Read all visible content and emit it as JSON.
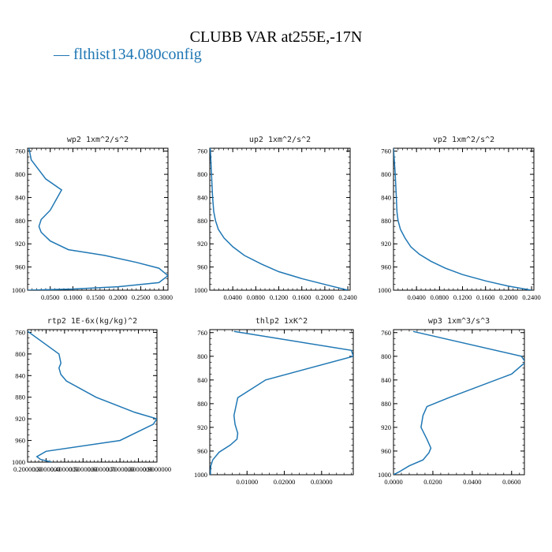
{
  "title": "CLUBB VAR at255E,-17N",
  "legend": "— flthist134.080config",
  "series_color": "#1f77b4",
  "chart_data": [
    {
      "type": "line",
      "title": "wp2   1xm^2/s^2",
      "xlim": [
        0.0,
        0.31
      ],
      "ylim": [
        1000,
        755
      ],
      "y_reversed": true,
      "xticks": [
        "0.0500",
        "0.1000",
        "0.1500",
        "0.2000",
        "0.2500",
        "0.3000"
      ],
      "xtick_values": [
        0.05,
        0.1,
        0.15,
        0.2,
        0.25,
        0.3
      ],
      "yticks": [
        "760",
        "800",
        "840",
        "880",
        "920",
        "960",
        "1000"
      ],
      "ytick_values": [
        760,
        800,
        840,
        880,
        920,
        960,
        1000
      ],
      "x": [
        0.003,
        0.008,
        0.04,
        0.075,
        0.05,
        0.03,
        0.025,
        0.03,
        0.05,
        0.09,
        0.17,
        0.24,
        0.29,
        0.31,
        0.29,
        0.2,
        0.1,
        0.0
      ],
      "y": [
        755,
        775,
        808,
        827,
        862,
        878,
        890,
        900,
        915,
        930,
        940,
        952,
        962,
        975,
        987,
        994,
        998,
        1000
      ]
    },
    {
      "type": "line",
      "title": "up2   1xm^2/s^2",
      "xlim": [
        0.0,
        0.244
      ],
      "ylim": [
        1000,
        755
      ],
      "y_reversed": true,
      "xticks": [
        "0.0400",
        "0.0800",
        "0.1200",
        "0.1600",
        "0.2000",
        "0.2400"
      ],
      "xtick_values": [
        0.04,
        0.08,
        0.12,
        0.16,
        0.2,
        0.24
      ],
      "yticks": [
        "760",
        "800",
        "840",
        "880",
        "920",
        "960",
        "1000"
      ],
      "ytick_values": [
        760,
        800,
        840,
        880,
        920,
        960,
        1000
      ],
      "x": [
        0.001,
        0.003,
        0.005,
        0.007,
        0.01,
        0.015,
        0.025,
        0.04,
        0.06,
        0.09,
        0.12,
        0.16,
        0.2,
        0.24
      ],
      "y": [
        755,
        800,
        840,
        865,
        880,
        895,
        910,
        925,
        940,
        955,
        968,
        980,
        990,
        1000
      ]
    },
    {
      "type": "line",
      "title": "vp2   1xm^2/s^2",
      "xlim": [
        0.0,
        0.244
      ],
      "ylim": [
        1000,
        755
      ],
      "y_reversed": true,
      "xticks": [
        "0.0400",
        "0.0800",
        "0.1200",
        "0.1600",
        "0.2000",
        "0.2400"
      ],
      "xtick_values": [
        0.04,
        0.08,
        0.12,
        0.16,
        0.2,
        0.24
      ],
      "yticks": [
        "760",
        "800",
        "840",
        "880",
        "920",
        "960",
        "1000"
      ],
      "ytick_values": [
        760,
        800,
        840,
        880,
        920,
        960,
        1000
      ],
      "x": [
        0.0,
        0.003,
        0.005,
        0.006,
        0.008,
        0.012,
        0.02,
        0.03,
        0.045,
        0.065,
        0.09,
        0.12,
        0.16,
        0.2,
        0.24
      ],
      "y": [
        755,
        800,
        840,
        865,
        880,
        895,
        910,
        925,
        938,
        950,
        962,
        973,
        984,
        993,
        1000
      ]
    },
    {
      "type": "line",
      "title": "rtp2   1E-6x(kg/kg)^2",
      "xlim": [
        0.2,
        0.9
      ],
      "ylim": [
        1000,
        755
      ],
      "y_reversed": true,
      "xticks": [
        "0.2000000",
        "0.3000000",
        "0.4000000",
        "0.5000000",
        "0.6000000",
        "0.7000000",
        "0.8000000",
        "0.9000000"
      ],
      "xtick_values": [
        0.2,
        0.3,
        0.4,
        0.5,
        0.6,
        0.7,
        0.8,
        0.9
      ],
      "yticks": [
        "760",
        "800",
        "840",
        "880",
        "920",
        "960",
        "1000"
      ],
      "ytick_values": [
        760,
        800,
        840,
        880,
        920,
        960,
        1000
      ],
      "x": [
        0.2,
        0.37,
        0.38,
        0.37,
        0.38,
        0.41,
        0.57,
        0.78,
        0.9,
        0.88,
        0.7,
        0.3,
        0.25,
        0.27,
        0.33
      ],
      "y": [
        758,
        800,
        817,
        826,
        838,
        850,
        880,
        908,
        920,
        930,
        960,
        980,
        990,
        995,
        1000
      ]
    },
    {
      "type": "line",
      "title": "thlp2   1xK^2",
      "xlim": [
        0.0,
        0.0385
      ],
      "ylim": [
        1000,
        755
      ],
      "y_reversed": true,
      "xticks": [
        "0.01000",
        "0.02000",
        "0.03000"
      ],
      "xtick_values": [
        0.01,
        0.02,
        0.03
      ],
      "yticks": [
        "760",
        "800",
        "840",
        "880",
        "920",
        "960",
        "1000"
      ],
      "ytick_values": [
        760,
        800,
        840,
        880,
        920,
        960,
        1000
      ],
      "x": [
        0.0065,
        0.038,
        0.0385,
        0.015,
        0.0075,
        0.0065,
        0.0068,
        0.0075,
        0.0073,
        0.0055,
        0.0025,
        0.0008,
        0.0003,
        0.0002,
        0.0002
      ],
      "y": [
        758,
        790,
        800,
        840,
        870,
        900,
        915,
        930,
        940,
        950,
        962,
        975,
        985,
        993,
        1000
      ]
    },
    {
      "type": "line",
      "title": "wp3   1xm^3/s^3",
      "xlim": [
        0.0,
        0.0665
      ],
      "ylim": [
        1000,
        755
      ],
      "y_reversed": true,
      "xticks": [
        "0.0000",
        "0.0200",
        "0.0400",
        "0.0600"
      ],
      "xtick_values": [
        0.0,
        0.02,
        0.04,
        0.06
      ],
      "yticks": [
        "760",
        "800",
        "840",
        "880",
        "920",
        "960",
        "1000"
      ],
      "ytick_values": [
        760,
        800,
        840,
        880,
        920,
        960,
        1000
      ],
      "x": [
        0.01,
        0.065,
        0.067,
        0.06,
        0.028,
        0.017,
        0.015,
        0.014,
        0.017,
        0.019,
        0.018,
        0.015,
        0.008,
        0.003,
        0.0
      ],
      "y": [
        758,
        800,
        810,
        830,
        870,
        885,
        900,
        920,
        940,
        955,
        963,
        975,
        985,
        995,
        1000
      ]
    }
  ]
}
